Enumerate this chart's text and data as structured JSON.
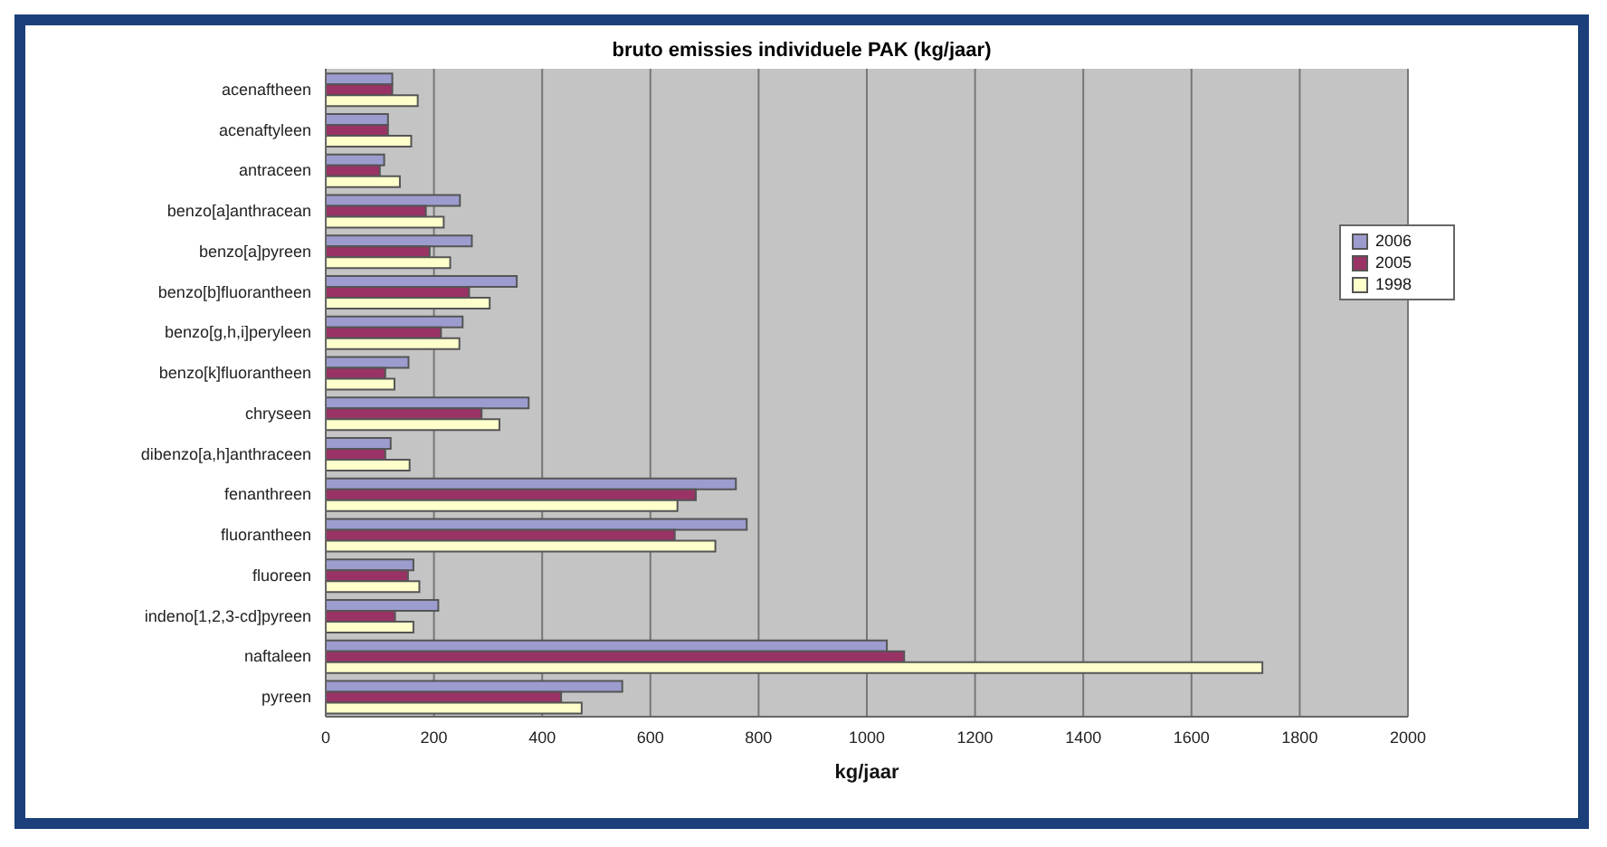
{
  "chart_data": {
    "type": "bar",
    "orientation": "horizontal",
    "title": "bruto emissies individuele PAK (kg/jaar)",
    "xlabel": "kg/jaar",
    "categories": [
      "acenaftheen",
      "acenaftyleen",
      "antraceen",
      "benzo[a]anthracean",
      "benzo[a]pyreen",
      "benzo[b]fluorantheen",
      "benzo[g,h,i]peryleen",
      "benzo[k]fluorantheen",
      "chryseen",
      "dibenzo[a,h]anthraceen",
      "fenanthreen",
      "fluorantheen",
      "fluoreen",
      "indeno[1,2,3-cd]pyreen",
      "naftaleen",
      "pyreen"
    ],
    "series": [
      {
        "name": "2006",
        "color": "#9c9ccf",
        "values": [
          123,
          115,
          108,
          248,
          270,
          353,
          253,
          153,
          375,
          120,
          758,
          778,
          162,
          208,
          1037,
          548
        ]
      },
      {
        "name": "2005",
        "color": "#993366",
        "values": [
          123,
          115,
          100,
          185,
          192,
          265,
          213,
          110,
          288,
          110,
          684,
          645,
          152,
          128,
          1069,
          435
        ]
      },
      {
        "name": "1998",
        "color": "#ffffcc",
        "values": [
          170,
          158,
          137,
          218,
          230,
          303,
          247,
          127,
          321,
          155,
          650,
          720,
          173,
          162,
          1731,
          473
        ]
      }
    ],
    "xlim": [
      0,
      2000
    ],
    "xticks": [
      0,
      200,
      400,
      600,
      800,
      1000,
      1200,
      1400,
      1600,
      1800,
      2000
    ],
    "grid": "x",
    "legend": "top right"
  }
}
